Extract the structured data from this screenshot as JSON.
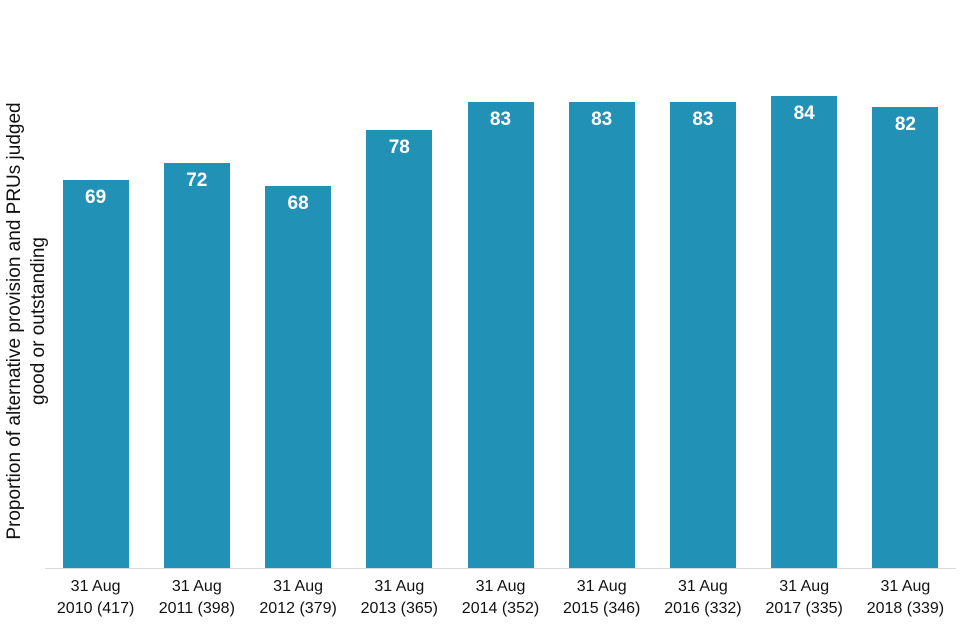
{
  "chart_data": {
    "type": "bar",
    "categories": [
      "31 Aug 2010 (417)",
      "31 Aug 2011 (398)",
      "31 Aug 2012 (379)",
      "31 Aug 2013 (365)",
      "31 Aug 2014 (352)",
      "31 Aug 2015 (346)",
      "31 Aug 2016 (332)",
      "31 Aug 2017 (335)",
      "31 Aug 2018 (339)"
    ],
    "values": [
      69,
      72,
      68,
      78,
      83,
      83,
      83,
      84,
      82
    ],
    "title": "",
    "xlabel": "",
    "ylabel": "Proportion of alternative provision and PRUs judged good or outstanding",
    "ylabel_lines": [
      "Proportion of alternative provision and PRUs judged",
      "good or outstanding"
    ],
    "ylim": [
      0,
      100
    ],
    "grid": false,
    "legend_position": "none",
    "value_labels": "inside-end",
    "bar_color": "#2191b5",
    "axis_line_color": "#d9d9d9",
    "value_label_color": "#ffffff",
    "axis_text_color": "#111111"
  }
}
